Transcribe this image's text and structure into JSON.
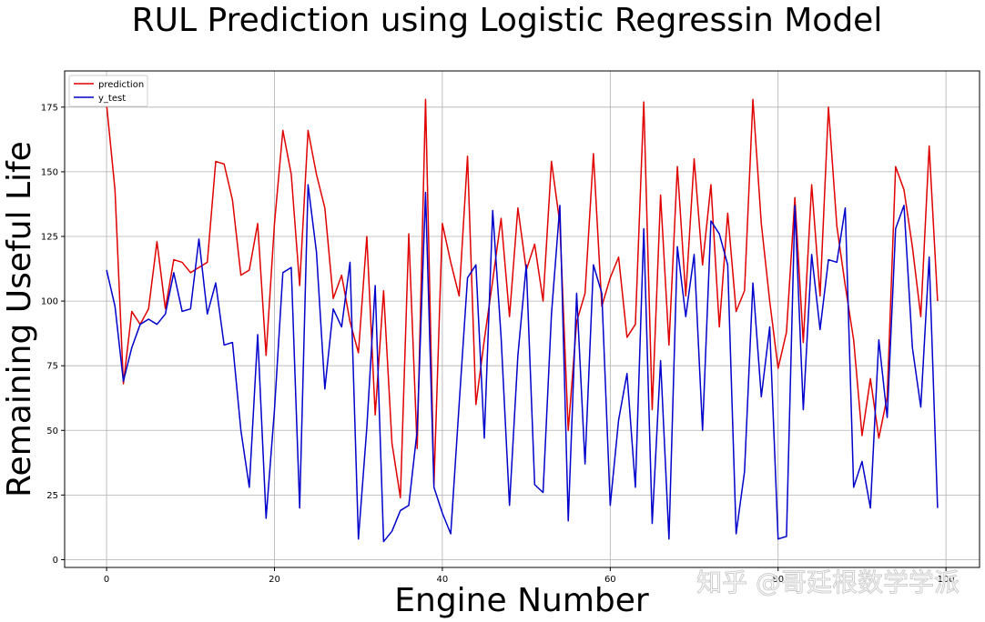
{
  "chart_data": {
    "type": "line",
    "title": "RUL Prediction using Logistic Regressin Model",
    "xlabel": "Engine Number",
    "ylabel": "Remaining Useful Life",
    "xlim": [
      -5,
      104
    ],
    "ylim": [
      -3,
      189
    ],
    "xticks": [
      0,
      20,
      40,
      60,
      80,
      100
    ],
    "xtick_labels": [
      "0",
      "20",
      "40",
      "60",
      "80",
      "100"
    ],
    "yticks": [
      0,
      25,
      50,
      75,
      100,
      125,
      150,
      175
    ],
    "ytick_labels": [
      "0",
      "25",
      "50",
      "75",
      "100",
      "125",
      "150",
      "175"
    ],
    "grid": true,
    "legend_position": "top-left",
    "series": [
      {
        "name": "prediction",
        "color": "#e00000",
        "values": [
          176,
          143,
          68,
          96,
          91,
          97,
          123,
          97,
          116,
          115,
          111,
          113,
          115,
          154,
          153,
          139,
          110,
          112,
          130,
          79,
          130,
          166,
          149,
          106,
          166,
          149,
          136,
          101,
          110,
          92,
          80,
          125,
          56,
          104,
          45,
          24,
          126,
          43,
          178,
          29,
          130,
          115,
          102,
          156,
          60,
          85,
          108,
          132,
          94,
          136,
          112,
          122,
          100,
          154,
          130,
          50,
          92,
          103,
          157,
          98,
          109,
          117,
          86,
          91,
          177,
          58,
          141,
          83,
          152,
          102,
          155,
          114,
          145,
          90,
          134,
          96,
          104,
          178,
          130,
          100,
          74,
          88,
          140,
          84,
          145,
          102,
          175,
          129,
          106,
          85,
          48,
          70,
          47,
          63,
          152,
          143,
          121,
          94,
          160,
          100
        ]
      },
      {
        "name": "y_test",
        "color": "#0000cc",
        "values": [
          112,
          98,
          69,
          82,
          91,
          93,
          91,
          95,
          111,
          96,
          97,
          124,
          95,
          107,
          83,
          84,
          50,
          28,
          87,
          16,
          58,
          111,
          113,
          20,
          145,
          119,
          66,
          97,
          90,
          115,
          8,
          51,
          106,
          7,
          11,
          19,
          21,
          50,
          142,
          28,
          18,
          10,
          60,
          109,
          114,
          47,
          135,
          86,
          21,
          79,
          114,
          29,
          26,
          95,
          137,
          15,
          103,
          37,
          114,
          103,
          21,
          54,
          72,
          28,
          128,
          14,
          77,
          8,
          121,
          94,
          118,
          50,
          131,
          126,
          114,
          10,
          34,
          107,
          63,
          90,
          8,
          9,
          137,
          58,
          118,
          89,
          116,
          115,
          136,
          28,
          38,
          20,
          85,
          55,
          128,
          137,
          82,
          59,
          117,
          20
        ]
      }
    ]
  },
  "watermark": "知乎 @哥廷根数学学派"
}
